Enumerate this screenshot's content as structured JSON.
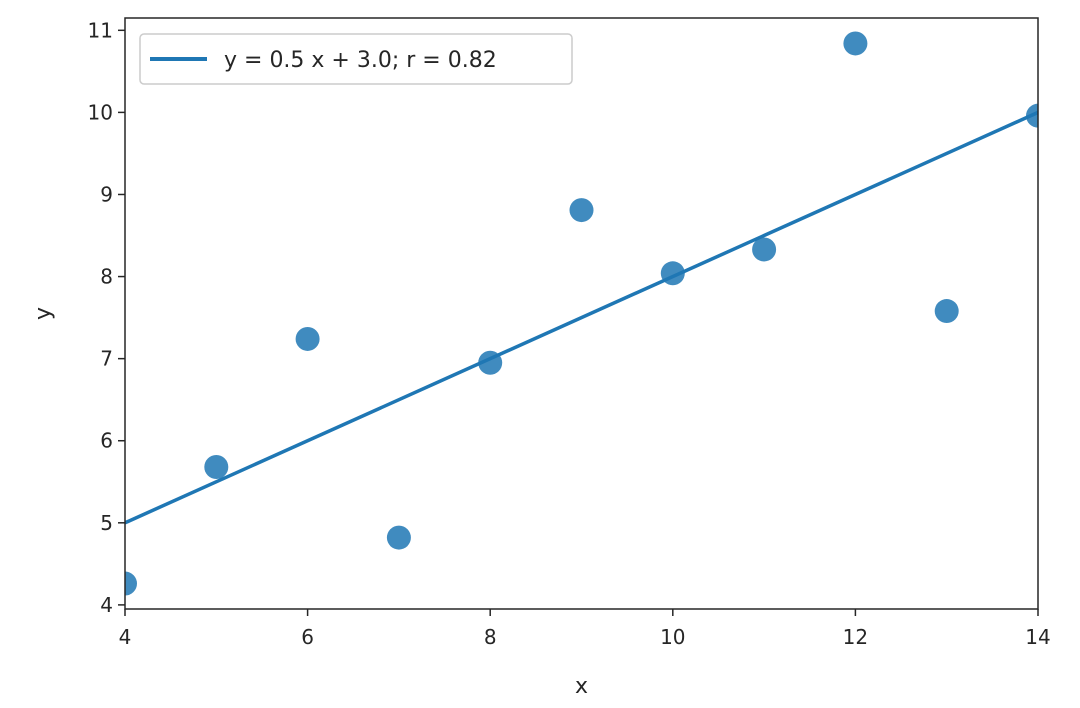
{
  "chart_data": {
    "type": "scatter",
    "title": "",
    "xlabel": "x",
    "ylabel": "y",
    "xlim": [
      4,
      14
    ],
    "ylim": [
      3.95,
      11.15
    ],
    "xticks": [
      4,
      6,
      8,
      10,
      12,
      14
    ],
    "yticks": [
      4,
      5,
      6,
      7,
      8,
      9,
      10,
      11
    ],
    "grid": false,
    "legend_position": "upper-left",
    "colors": {
      "series": "#1f77b4",
      "axes": "#262626",
      "background": "#ffffff"
    },
    "series": [
      {
        "kind": "scatter",
        "x": [
          4,
          5,
          6,
          7,
          8,
          9,
          10,
          11,
          12,
          13,
          14
        ],
        "y": [
          4.26,
          5.68,
          7.24,
          4.82,
          6.95,
          8.81,
          8.04,
          8.33,
          10.84,
          7.58,
          9.96
        ]
      },
      {
        "kind": "line",
        "name": "y = 0.5 x + 3.0; r = 0.82",
        "slope": 0.5,
        "intercept": 3.0,
        "x": [
          4,
          14
        ],
        "y": [
          5.0,
          10.0
        ]
      }
    ]
  }
}
